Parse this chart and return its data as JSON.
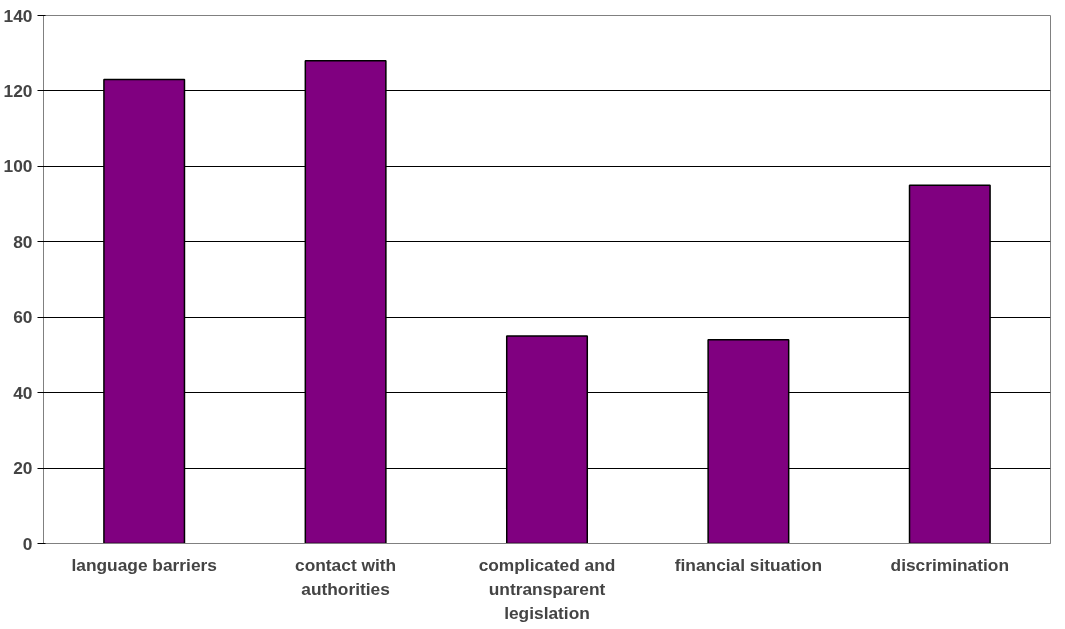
{
  "chart_data": {
    "type": "bar",
    "categories": [
      "language barriers",
      "contact with authorities",
      "complicated and untransparent legislation",
      "financial situation",
      "discrimination"
    ],
    "values": [
      123,
      128,
      55,
      54,
      95
    ],
    "color": "#800080",
    "ylim": [
      0,
      140
    ],
    "yticks": [
      0,
      20,
      40,
      60,
      80,
      100,
      120,
      140
    ],
    "grid": "y"
  }
}
